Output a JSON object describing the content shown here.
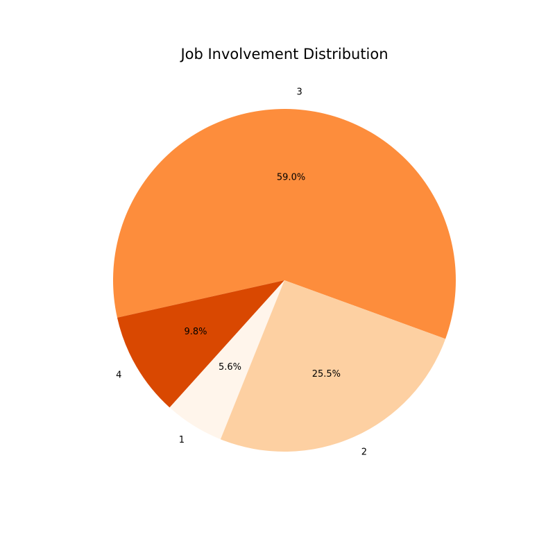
{
  "chart_data": {
    "type": "pie",
    "title": "Job Involvement Distribution",
    "categories": [
      "3",
      "4",
      "1",
      "2"
    ],
    "values": [
      59.0,
      9.8,
      5.6,
      25.5
    ],
    "percent_labels": [
      "59.0%",
      "9.8%",
      "5.6%",
      "25.5%"
    ],
    "colors": [
      "#fd8d3c",
      "#d94801",
      "#fff5eb",
      "#fdd0a2"
    ],
    "start_angle_deg": -20,
    "direction": "counterclockwise"
  }
}
